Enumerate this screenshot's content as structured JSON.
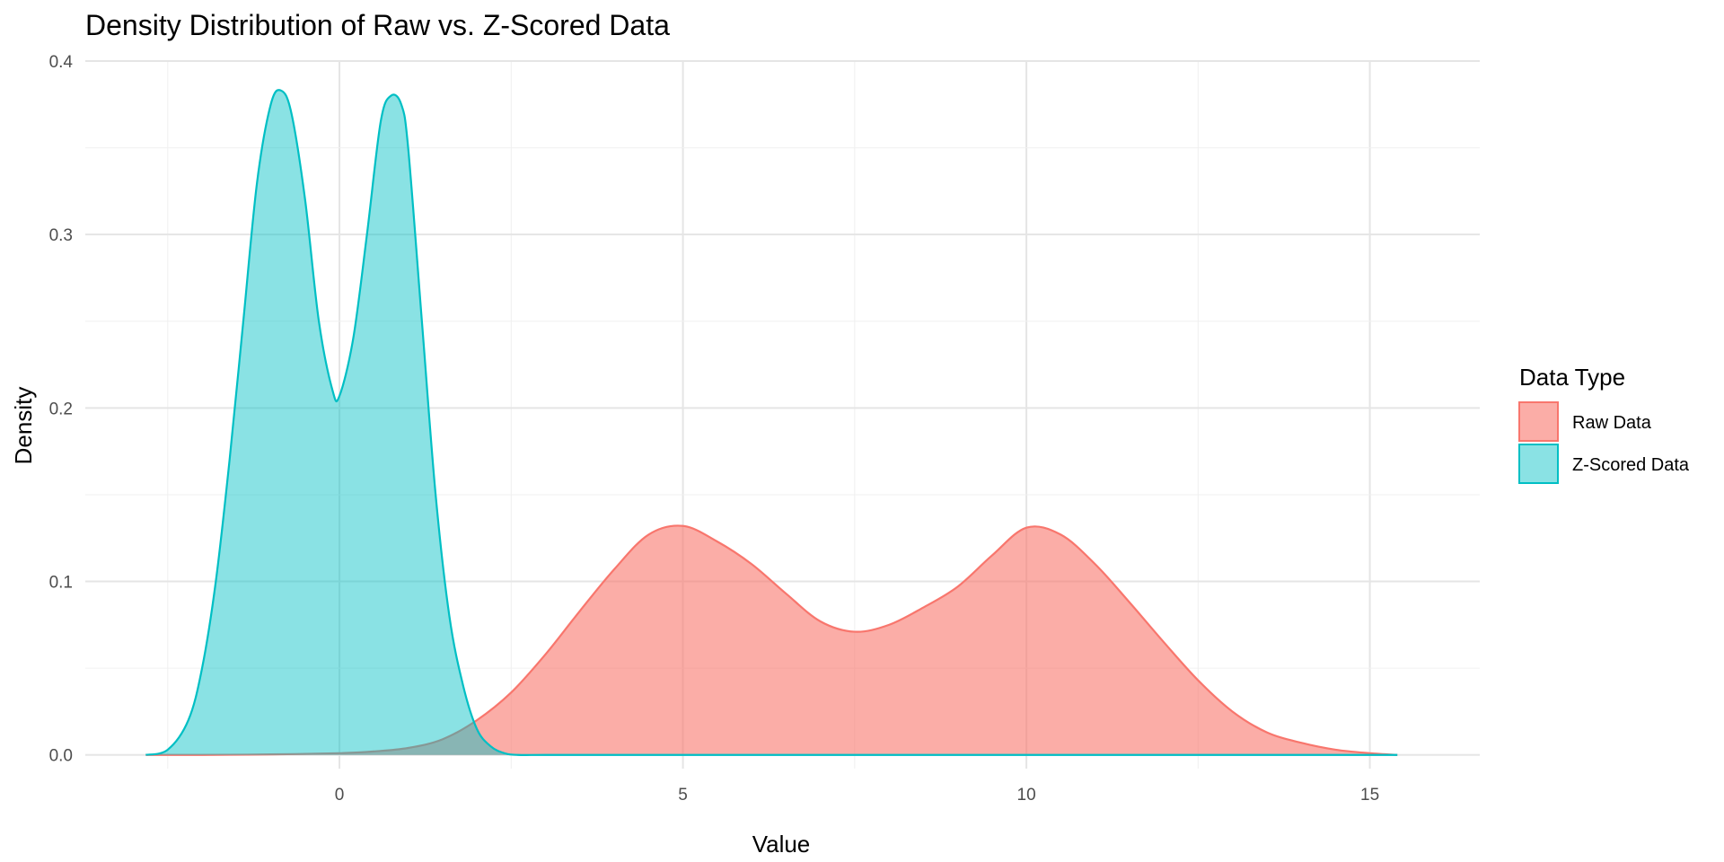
{
  "chart_data": {
    "type": "area",
    "title": "Density Distribution of Raw vs. Z-Scored Data",
    "xlabel": "Value",
    "ylabel": "Density",
    "xlim": [
      -3.7,
      16.6
    ],
    "ylim": [
      -0.0079,
      0.4
    ],
    "x_ticks": [
      0,
      5,
      10,
      15
    ],
    "y_ticks": [
      0.0,
      0.1,
      0.2,
      0.3,
      0.4
    ],
    "x_tick_labels": [
      "0",
      "5",
      "10",
      "15"
    ],
    "y_tick_labels": [
      "0.0",
      "0.1",
      "0.2",
      "0.3",
      "0.4"
    ],
    "grid": true,
    "legend": {
      "title": "Data Type",
      "placement": "right"
    },
    "series": [
      {
        "name": "Raw Data",
        "fill": "#F8766D",
        "fill_opacity": 0.6,
        "stroke": "#F8766D",
        "x": [
          -2.82,
          -2.0,
          -1.0,
          0.0,
          0.5,
          1.0,
          1.5,
          2.0,
          2.5,
          3.0,
          3.5,
          4.0,
          4.5,
          5.0,
          5.5,
          6.0,
          6.5,
          7.0,
          7.5,
          8.0,
          8.5,
          9.0,
          9.5,
          10.0,
          10.5,
          11.0,
          11.5,
          12.0,
          12.5,
          13.0,
          13.5,
          14.0,
          14.5,
          15.0,
          15.4
        ],
        "y": [
          0.0,
          0.0,
          0.0003,
          0.001,
          0.002,
          0.004,
          0.009,
          0.02,
          0.036,
          0.058,
          0.083,
          0.107,
          0.127,
          0.132,
          0.123,
          0.11,
          0.093,
          0.077,
          0.071,
          0.075,
          0.085,
          0.097,
          0.115,
          0.131,
          0.127,
          0.11,
          0.088,
          0.065,
          0.043,
          0.025,
          0.013,
          0.007,
          0.003,
          0.001,
          0.0
        ]
      },
      {
        "name": "Z-Scored Data",
        "fill": "#00BFC4",
        "fill_opacity": 0.46,
        "stroke": "#00BFC4",
        "x": [
          -2.82,
          -2.5,
          -2.2,
          -2.0,
          -1.8,
          -1.6,
          -1.4,
          -1.2,
          -1.0,
          -0.85,
          -0.7,
          -0.5,
          -0.3,
          -0.1,
          0.0,
          0.2,
          0.4,
          0.6,
          0.75,
          0.9,
          1.0,
          1.2,
          1.4,
          1.6,
          1.8,
          2.0,
          2.2,
          2.4,
          2.6,
          3.0,
          4.0,
          5.0,
          10.0,
          15.4
        ],
        "y": [
          0.0,
          0.003,
          0.02,
          0.05,
          0.1,
          0.17,
          0.25,
          0.33,
          0.375,
          0.383,
          0.37,
          0.32,
          0.25,
          0.21,
          0.207,
          0.24,
          0.3,
          0.365,
          0.38,
          0.375,
          0.35,
          0.25,
          0.15,
          0.08,
          0.04,
          0.015,
          0.005,
          0.001,
          0.0,
          0.0,
          0.0,
          0.0,
          0.0,
          0.0
        ]
      }
    ]
  }
}
